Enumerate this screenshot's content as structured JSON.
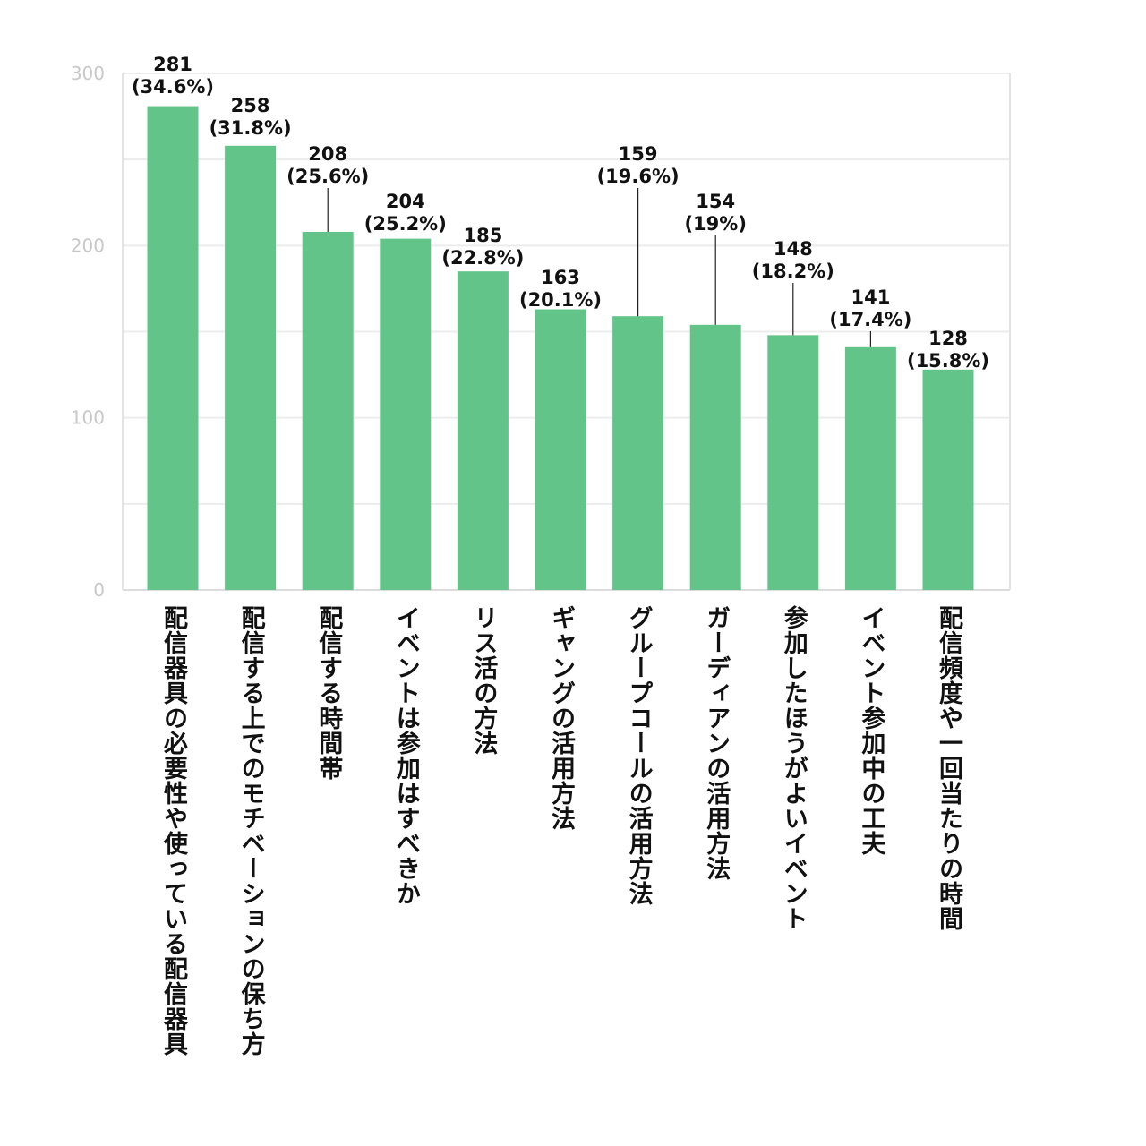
{
  "chart_data": {
    "type": "bar",
    "title": "",
    "xlabel": "",
    "ylabel": "",
    "ylim": [
      0,
      300
    ],
    "yticks": [
      0,
      100,
      200,
      300
    ],
    "grid": true,
    "bar_color": "#63c48a",
    "categories": [
      "配信器具の必要性や使っている配信器具",
      "配信する上でのモチベーションの保ち方",
      "配信する時間帯",
      "イベントは参加はすべきか",
      "リス活の方法",
      "ギャングの活用方法",
      "グループコールの活用方法",
      "ガーディアンの活用方法",
      "参加したほうがよいイベント",
      "イベント参加中の工夫",
      "配信頻度や一回当たりの時間"
    ],
    "values": [
      281,
      258,
      208,
      204,
      185,
      163,
      159,
      154,
      148,
      141,
      128
    ],
    "percent_labels": [
      "(34.6%)",
      "(31.8%)",
      "(25.6%)",
      "(25.2%)",
      "(22.8%)",
      "(20.1%)",
      "(19.6%)",
      "(19%)",
      "(18.2%)",
      "(17.4%)",
      "(15.8%)"
    ]
  }
}
